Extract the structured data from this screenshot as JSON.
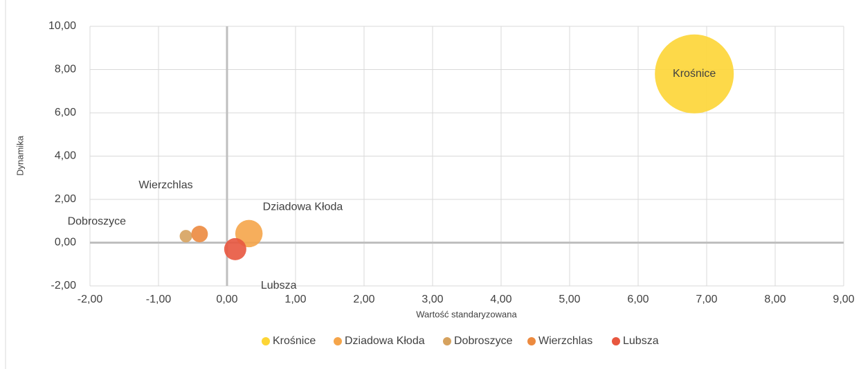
{
  "chart_data": {
    "type": "bubble",
    "xlabel": "Wartość standaryzowana",
    "ylabel": "Dynamika",
    "xlim": [
      -2,
      9
    ],
    "xticks": [
      {
        "value": -2,
        "label": "-2,00"
      },
      {
        "value": -1,
        "label": "-1,00"
      },
      {
        "value": 0,
        "label": "0,00"
      },
      {
        "value": 1,
        "label": "1,00"
      },
      {
        "value": 2,
        "label": "2,00"
      },
      {
        "value": 3,
        "label": "3,00"
      },
      {
        "value": 4,
        "label": "4,00"
      },
      {
        "value": 5,
        "label": "5,00"
      },
      {
        "value": 6,
        "label": "6,00"
      },
      {
        "value": 7,
        "label": "7,00"
      },
      {
        "value": 8,
        "label": "8,00"
      },
      {
        "value": 9,
        "label": "9,00"
      }
    ],
    "ylim": [
      -2,
      10
    ],
    "yticks": [
      {
        "value": -2,
        "label": "-2,00"
      },
      {
        "value": 0,
        "label": "0,00"
      },
      {
        "value": 2,
        "label": "2,00"
      },
      {
        "value": 4,
        "label": "4,00"
      },
      {
        "value": 6,
        "label": "6,00"
      },
      {
        "value": 8,
        "label": "8,00"
      },
      {
        "value": 10,
        "label": "10,00"
      }
    ],
    "grid": true,
    "legend": "bottom",
    "series": [
      {
        "name": "Krośnice",
        "color": "#fdd535",
        "x": [
          6.82
        ],
        "values": [
          7.8
        ],
        "sizes": [
          100
        ]
      },
      {
        "name": "Dziadowa Kłoda",
        "color": "#f5a54a",
        "x": [
          0.32
        ],
        "values": [
          0.42
        ],
        "sizes": [
          12
        ]
      },
      {
        "name": "Dobroszyce",
        "color": "#d6a25e",
        "x": [
          -0.6
        ],
        "values": [
          0.3
        ],
        "sizes": [
          2.5
        ]
      },
      {
        "name": "Wierzchlas",
        "color": "#ec8a3f",
        "x": [
          -0.4
        ],
        "values": [
          0.4
        ],
        "sizes": [
          4.4
        ]
      },
      {
        "name": "Lubsza",
        "color": "#e8573f",
        "x": [
          0.12
        ],
        "values": [
          -0.3
        ],
        "sizes": [
          7.9
        ]
      }
    ]
  }
}
